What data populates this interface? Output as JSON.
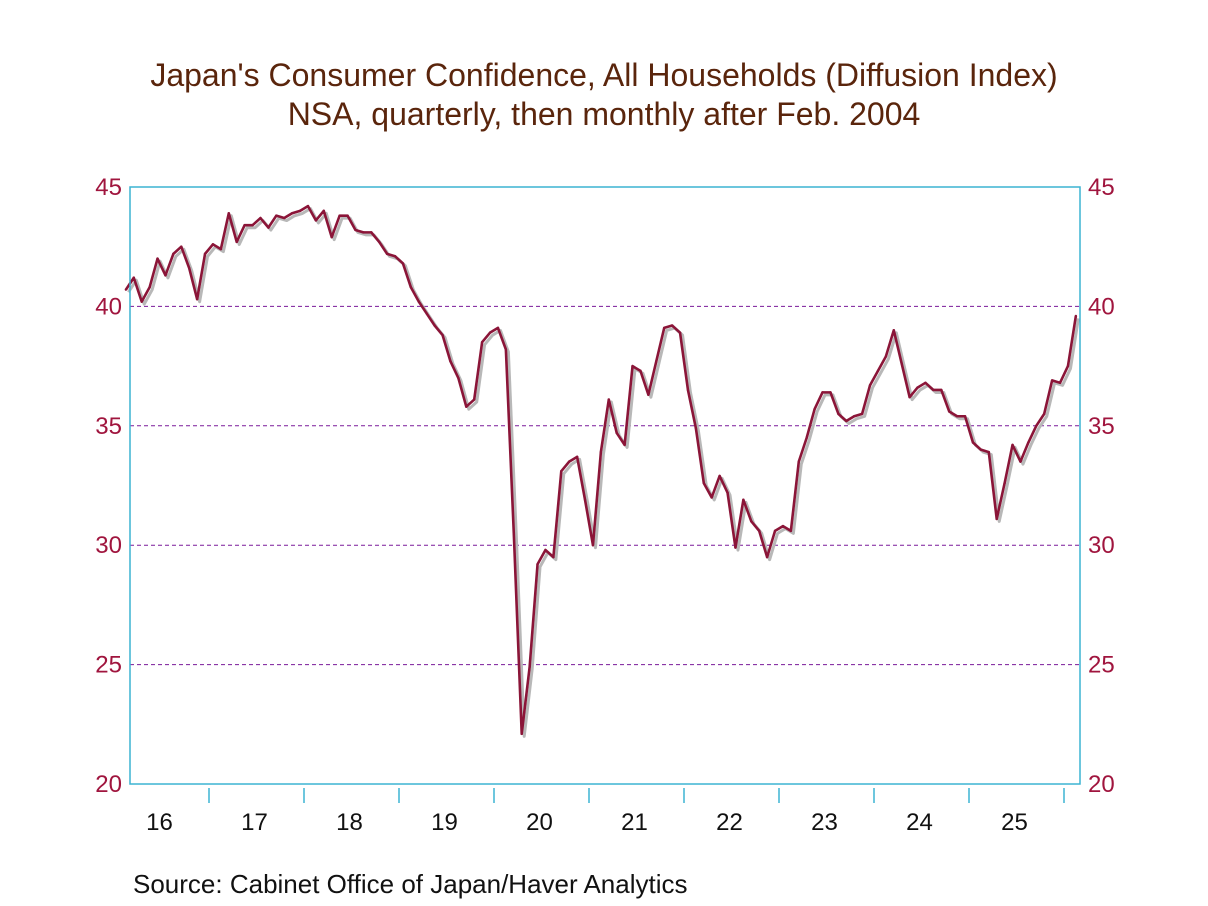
{
  "chart_data": {
    "type": "line",
    "title": "Japan's Consumer Confidence, All Households (Diffusion Index)",
    "subtitle": "NSA, quarterly, then monthly after Feb. 2004",
    "source": "Source:  Cabinet Office of Japan/Haver Analytics",
    "ylim": [
      20,
      45
    ],
    "yticks": [
      20,
      25,
      30,
      35,
      40,
      45
    ],
    "xlim": [
      "2016-01-20",
      "2026-02-28"
    ],
    "xtick_labels": [
      "16",
      "17",
      "18",
      "19",
      "20",
      "21",
      "22",
      "23",
      "24",
      "25"
    ],
    "grid": "horizontal dashed",
    "colors": {
      "line": "#8b1538",
      "shadow": "#b8b8b8",
      "axis": "#3cb4d2",
      "grid": "#7a1a9a",
      "ytick": "#a0153e",
      "title": "#5a250c"
    },
    "series": [
      {
        "start": "2016-02",
        "frequency": "monthly",
        "values": [
          40.7,
          41.2,
          40.2,
          40.8,
          42.0,
          41.3,
          42.2,
          42.5,
          41.6,
          40.3,
          42.2,
          42.6,
          42.4,
          43.9,
          42.7,
          43.4,
          43.4,
          43.7,
          43.3,
          43.8,
          43.7,
          43.9,
          44.0,
          44.2,
          43.6,
          44.0,
          42.9,
          43.8,
          43.8,
          43.2,
          43.1,
          43.1,
          42.7,
          42.2,
          42.1,
          41.8,
          40.8,
          40.2,
          39.7,
          39.2,
          38.8,
          37.7,
          37.0,
          35.8,
          36.1,
          38.5,
          38.9,
          39.1,
          38.2,
          30.5,
          22.1,
          24.9,
          29.2,
          29.8,
          29.5,
          33.1,
          33.5,
          33.7,
          31.9,
          30.0,
          33.9,
          36.1,
          34.7,
          34.2,
          37.5,
          37.3,
          36.3,
          37.7,
          39.1,
          39.2,
          38.9,
          36.5,
          34.9,
          32.6,
          32.0,
          32.9,
          32.2,
          29.9,
          31.9,
          31.0,
          30.6,
          29.5,
          30.6,
          30.8,
          30.6,
          33.5,
          34.5,
          35.7,
          36.4,
          36.4,
          35.5,
          35.2,
          35.4,
          35.5,
          36.7,
          37.3,
          37.9,
          39.0,
          37.6,
          36.2,
          36.6,
          36.8,
          36.5,
          36.5,
          35.6,
          35.4,
          35.4,
          34.3,
          34.0,
          33.9,
          31.1,
          32.6,
          34.2,
          33.5,
          34.3,
          35.0,
          35.5,
          36.9,
          36.8,
          37.5,
          39.6
        ]
      }
    ]
  }
}
